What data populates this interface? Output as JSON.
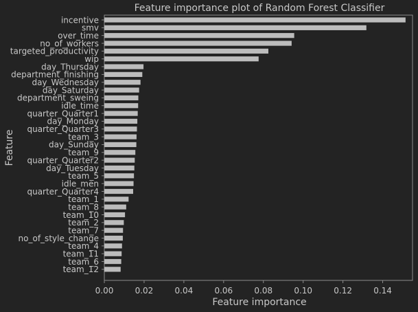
{
  "chart_data": {
    "type": "bar",
    "orientation": "horizontal",
    "title": "Feature importance plot of Random Forest Classifier",
    "xlabel": "Feature importance",
    "ylabel": "Feature",
    "xlim": [
      0,
      0.155
    ],
    "xticks": [
      "0.00",
      "0.02",
      "0.04",
      "0.06",
      "0.08",
      "0.10",
      "0.12",
      "0.14"
    ],
    "grid": false,
    "categories": [
      "incentive",
      "smv",
      "over_time",
      "no_of_workers",
      "targeted_productivity",
      "wip",
      "day_Thursday",
      "department_finishing",
      "day_Wednesday",
      "day_Saturday",
      "department_sweing",
      "idle_time",
      "quarter_Quarter1",
      "day_Monday",
      "quarter_Quarter3",
      "team_3",
      "day_Sunday",
      "team_9",
      "quarter_Quarter2",
      "day_Tuesday",
      "team_5",
      "idle_men",
      "quarter_Quarter4",
      "team_1",
      "team_8",
      "team_10",
      "team_2",
      "team_7",
      "no_of_style_change",
      "team_4",
      "team_11",
      "team_6",
      "team_12"
    ],
    "values": [
      0.1515,
      0.1318,
      0.0955,
      0.0942,
      0.0825,
      0.0776,
      0.0197,
      0.0191,
      0.0182,
      0.0175,
      0.0171,
      0.017,
      0.0168,
      0.0166,
      0.0164,
      0.0162,
      0.0161,
      0.0156,
      0.0153,
      0.0151,
      0.0149,
      0.0147,
      0.0145,
      0.0122,
      0.011,
      0.0104,
      0.0098,
      0.0094,
      0.0093,
      0.0089,
      0.0087,
      0.0085,
      0.0082
    ],
    "bar_color": "#bcbcbc",
    "axes_color": "#8c8c8c",
    "text_color": "#c8c8c8",
    "background": "#232323"
  }
}
